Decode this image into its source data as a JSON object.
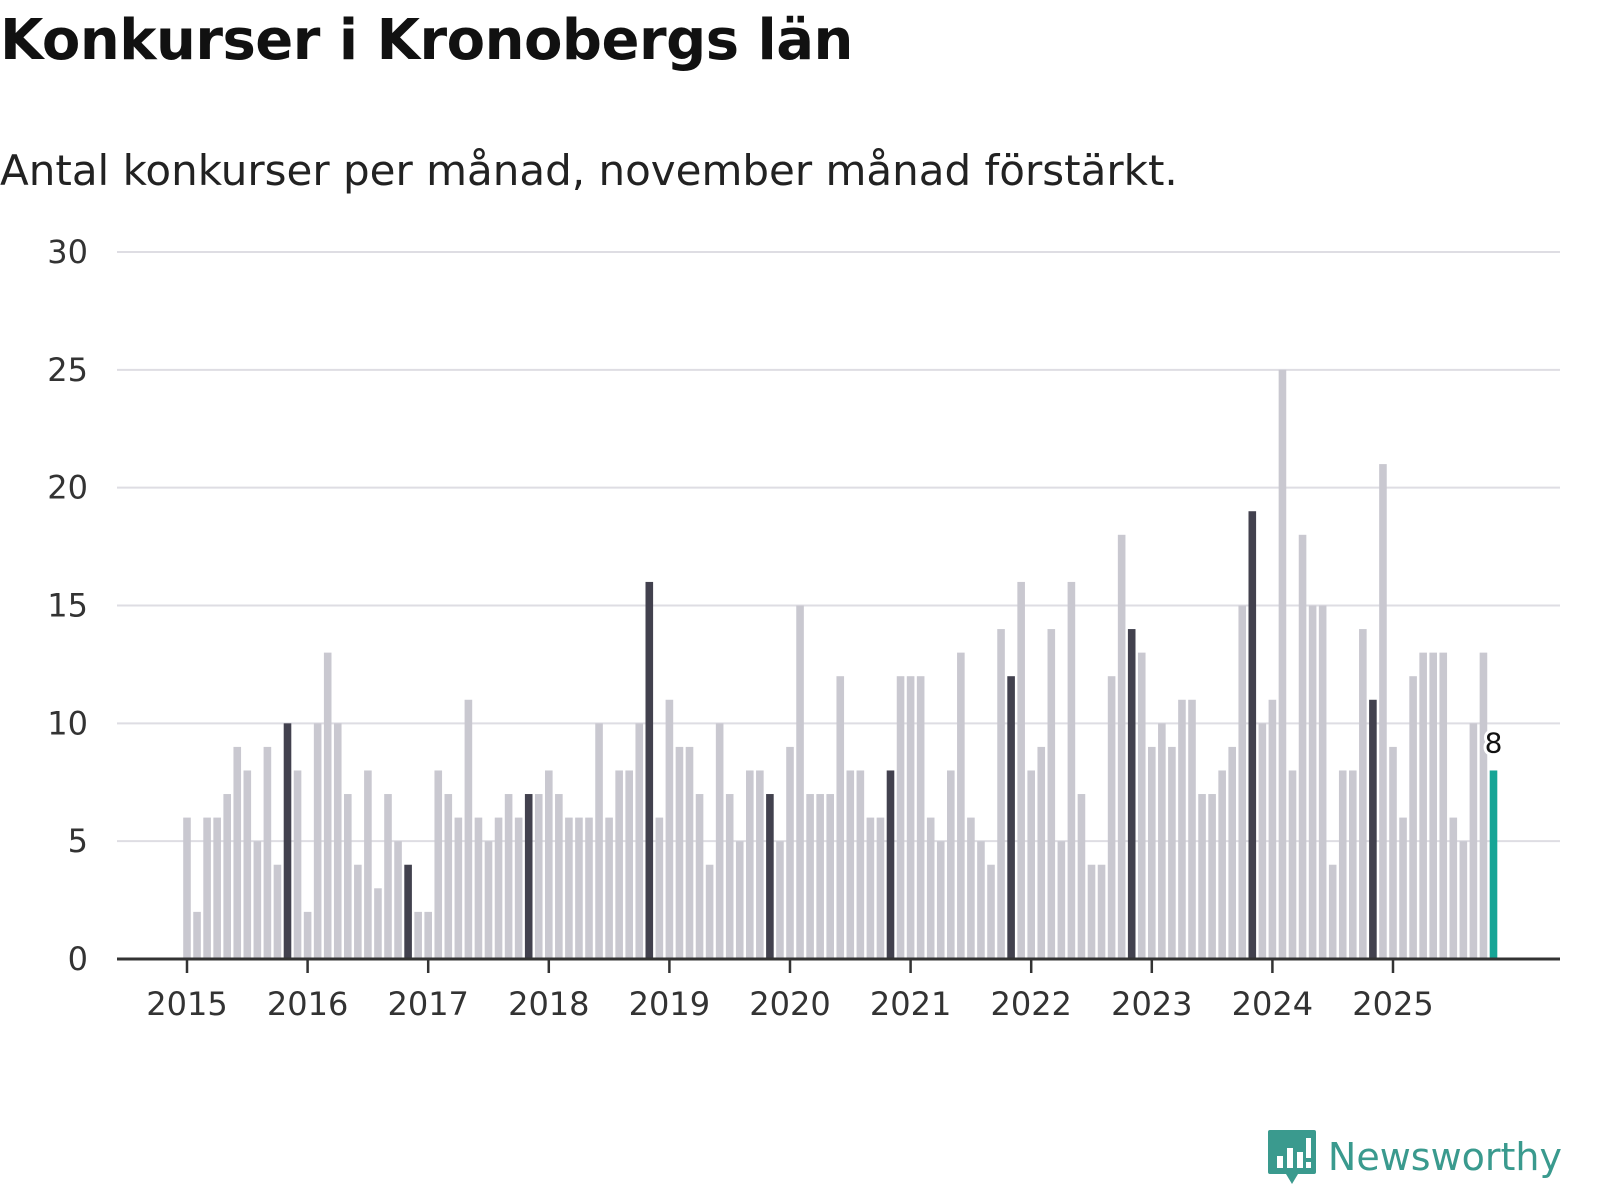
{
  "colors": {
    "bar_default": "#c9c8d0",
    "bar_november": "#42414e",
    "bar_highlight": "#16a596",
    "grid": "#dedde3",
    "axis": "#333333",
    "brand": "#3a9a8e"
  },
  "brand": {
    "name": "Newsworthy",
    "icon": "newsworthy-logo-icon"
  },
  "chart_data": {
    "type": "bar",
    "title": "Konkurser i Kronobergs län",
    "subtitle": "Antal konkurser per månad, november månad förstärkt.",
    "xlabel": "",
    "ylabel": "",
    "ylim": [
      0,
      30
    ],
    "yticks": [
      0,
      5,
      10,
      15,
      20,
      25,
      30
    ],
    "grid": true,
    "legend": "none",
    "start": "2015-01",
    "xtick_labels": [
      "2015",
      "2016",
      "2017",
      "2018",
      "2019",
      "2020",
      "2021",
      "2022",
      "2023",
      "2024",
      "2025"
    ],
    "highlight_month": 11,
    "value_label": {
      "text": "8",
      "period": "2025-11"
    },
    "values": [
      6,
      2,
      6,
      6,
      7,
      9,
      8,
      5,
      9,
      4,
      10,
      8,
      2,
      10,
      13,
      10,
      7,
      4,
      8,
      3,
      7,
      5,
      4,
      2,
      2,
      8,
      7,
      6,
      11,
      6,
      5,
      6,
      7,
      6,
      7,
      7,
      8,
      7,
      6,
      6,
      6,
      10,
      6,
      8,
      8,
      10,
      16,
      6,
      11,
      9,
      9,
      7,
      4,
      10,
      7,
      5,
      8,
      8,
      7,
      5,
      9,
      15,
      7,
      7,
      7,
      12,
      8,
      8,
      6,
      6,
      8,
      12,
      12,
      12,
      6,
      5,
      8,
      13,
      6,
      5,
      4,
      14,
      12,
      16,
      8,
      9,
      14,
      5,
      16,
      7,
      4,
      4,
      12,
      18,
      14,
      13,
      9,
      10,
      9,
      11,
      11,
      7,
      7,
      8,
      9,
      15,
      19,
      10,
      11,
      25,
      8,
      18,
      15,
      15,
      4,
      8,
      8,
      14,
      11,
      21,
      9,
      6,
      12,
      13,
      13,
      13,
      6,
      5,
      10,
      13,
      8
    ]
  }
}
